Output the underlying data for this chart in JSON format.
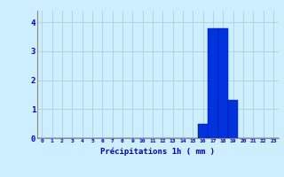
{
  "hours": [
    0,
    1,
    2,
    3,
    4,
    5,
    6,
    7,
    8,
    9,
    10,
    11,
    12,
    13,
    14,
    15,
    16,
    17,
    18,
    19,
    20,
    21,
    22,
    23
  ],
  "values": [
    0,
    0,
    0,
    0,
    0,
    0,
    0,
    0,
    0,
    0,
    0,
    0,
    0,
    0,
    0,
    0,
    0.5,
    3.8,
    3.8,
    1.3,
    0,
    0,
    0,
    0
  ],
  "bar_color": "#0033dd",
  "bar_edge_color": "#001199",
  "background_color": "#cceeff",
  "grid_color": "#aacccc",
  "xlabel": "Précipitations 1h ( mm )",
  "xlabel_color": "#0000cc",
  "tick_color": "#0000cc",
  "ylim": [
    0,
    4.4
  ],
  "yticks": [
    0,
    1,
    2,
    3,
    4
  ],
  "title": ""
}
